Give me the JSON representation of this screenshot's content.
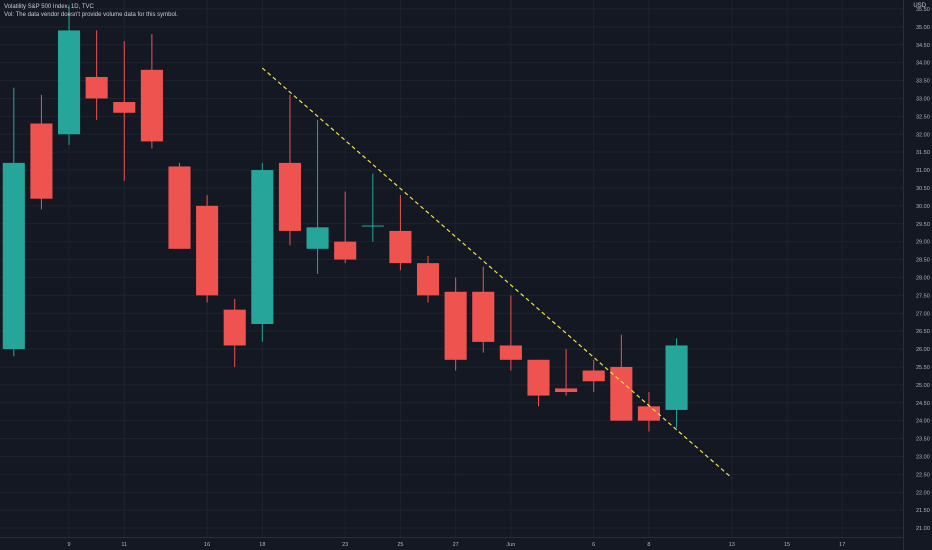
{
  "header": {
    "title": "Volatility S&P 500 Index, 1D, TVC",
    "volume_note": "Vol: The data vendor doesn't provide volume data for this symbol."
  },
  "currency": "USD",
  "colors": {
    "background": "#141823",
    "grid": "#1d2230",
    "up": "#26a69a",
    "down": "#ef5350",
    "trendline": "#f0e442",
    "axis_text": "#b2b5be"
  },
  "chart_data": {
    "type": "candlestick",
    "title": "Volatility S&P 500 Index, 1D, TVC",
    "ylim": [
      20.75,
      35.75
    ],
    "yticks": [
      "21.00",
      "21.50",
      "22.00",
      "22.50",
      "23.00",
      "23.50",
      "24.00",
      "24.50",
      "25.00",
      "25.50",
      "26.00",
      "26.50",
      "27.00",
      "27.50",
      "28.00",
      "28.50",
      "29.00",
      "29.50",
      "30.00",
      "30.50",
      "31.00",
      "31.50",
      "32.00",
      "32.50",
      "33.00",
      "33.50",
      "34.00",
      "34.50",
      "35.00",
      "35.50"
    ],
    "xticks": [
      {
        "label": "9",
        "index": 2
      },
      {
        "label": "11",
        "index": 4
      },
      {
        "label": "16",
        "index": 7
      },
      {
        "label": "18",
        "index": 9
      },
      {
        "label": "23",
        "index": 12
      },
      {
        "label": "25",
        "index": 14
      },
      {
        "label": "27",
        "index": 16
      },
      {
        "label": "Jun",
        "index": 18
      },
      {
        "label": "6",
        "index": 21
      },
      {
        "label": "8",
        "index": 23
      },
      {
        "label": "13",
        "index": 26
      },
      {
        "label": "15",
        "index": 28
      },
      {
        "label": "17",
        "index": 30
      }
    ],
    "candles": [
      {
        "open": 26.0,
        "high": 33.3,
        "low": 25.8,
        "close": 31.2
      },
      {
        "open": 32.3,
        "high": 33.1,
        "low": 29.9,
        "close": 30.2
      },
      {
        "open": 32.0,
        "high": 35.6,
        "low": 31.7,
        "close": 34.9
      },
      {
        "open": 33.6,
        "high": 34.9,
        "low": 32.4,
        "close": 33.0
      },
      {
        "open": 32.9,
        "high": 34.6,
        "low": 30.7,
        "close": 32.6
      },
      {
        "open": 33.8,
        "high": 34.8,
        "low": 31.6,
        "close": 31.8
      },
      {
        "open": 31.1,
        "high": 31.2,
        "low": 28.8,
        "close": 28.8
      },
      {
        "open": 30.0,
        "high": 30.3,
        "low": 27.3,
        "close": 27.5
      },
      {
        "open": 27.1,
        "high": 27.4,
        "low": 25.5,
        "close": 26.1
      },
      {
        "open": 26.7,
        "high": 31.2,
        "low": 26.2,
        "close": 31.0
      },
      {
        "open": 31.2,
        "high": 33.1,
        "low": 28.9,
        "close": 29.3
      },
      {
        "open": 28.8,
        "high": 32.4,
        "low": 28.1,
        "close": 29.4
      },
      {
        "open": 29.0,
        "high": 30.4,
        "low": 28.4,
        "close": 28.5
      },
      {
        "open": 29.45,
        "high": 30.9,
        "low": 29.0,
        "close": 29.45
      },
      {
        "open": 29.3,
        "high": 30.3,
        "low": 28.2,
        "close": 28.4
      },
      {
        "open": 28.4,
        "high": 28.6,
        "low": 27.3,
        "close": 27.5
      },
      {
        "open": 27.6,
        "high": 28.0,
        "low": 25.4,
        "close": 25.7
      },
      {
        "open": 27.6,
        "high": 28.3,
        "low": 25.9,
        "close": 26.2
      },
      {
        "open": 26.1,
        "high": 27.5,
        "low": 25.4,
        "close": 25.7
      },
      {
        "open": 25.7,
        "high": 25.7,
        "low": 24.4,
        "close": 24.7
      },
      {
        "open": 24.9,
        "high": 26.0,
        "low": 24.7,
        "close": 24.8
      },
      {
        "open": 25.4,
        "high": 25.7,
        "low": 24.8,
        "close": 25.1
      },
      {
        "open": 25.5,
        "high": 26.4,
        "low": 24.0,
        "close": 24.0
      },
      {
        "open": 24.4,
        "high": 24.8,
        "low": 23.7,
        "close": 24.0
      },
      {
        "open": 24.3,
        "high": 26.3,
        "low": 23.8,
        "close": 26.1
      }
    ],
    "trendline": {
      "x_start": 9,
      "y_start": 33.85,
      "x_end": 26,
      "y_end": 22.4,
      "style": "dashed"
    },
    "x_range": [
      -0.5,
      32.2
    ],
    "grid": true
  }
}
